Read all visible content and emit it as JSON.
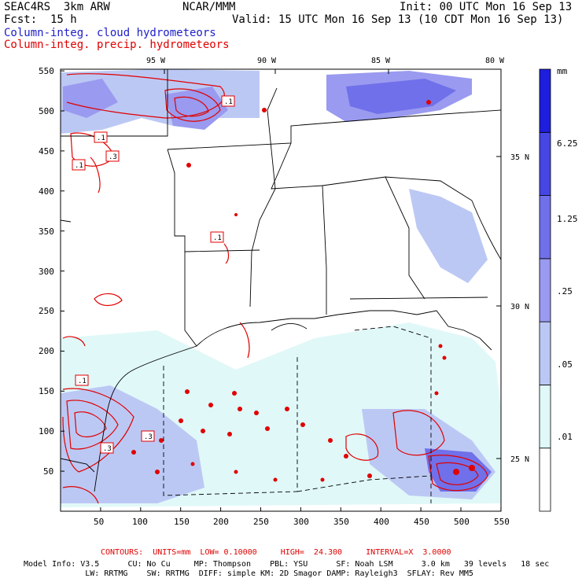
{
  "header": {
    "model": "SEAC4RS  3km ARW",
    "org": "NCAR/MMM",
    "init": "Init: 00 UTC Mon 16 Sep 13",
    "fcst_label": "Fcst:",
    "fcst_value": "15 h",
    "valid": "Valid: 15 UTC Mon 16 Sep 13 (10 CDT Mon 16 Sep 13)",
    "field1": "Column-integ. cloud hydrometeors",
    "field2": "Column-integ. precip. hydrometeors"
  },
  "map": {
    "lon_labels": [
      "95 W",
      "90 W",
      "85 W",
      "80 W"
    ],
    "lat_labels": [
      "35 N",
      "30 N",
      "25 N"
    ],
    "x_ticks": [
      "50",
      "100",
      "150",
      "200",
      "250",
      "300",
      "350",
      "400",
      "450",
      "500",
      "550"
    ],
    "y_ticks": [
      "550",
      "500",
      "450",
      "400",
      "350",
      "300",
      "250",
      "200",
      "150",
      "100",
      "50"
    ],
    "contour_labels": [
      ".1",
      ".1",
      ".3",
      ".1",
      ".1",
      ".1",
      ".3",
      ".3"
    ]
  },
  "colorbar": {
    "unit": "mm",
    "labels": [
      "6.25",
      "1.25",
      ".25",
      ".05",
      ".01"
    ],
    "colors": [
      "#ffffff",
      "#e0f8f8",
      "#bcc8f4",
      "#9a9af0",
      "#7070ea",
      "#4646e4",
      "#1e1ede"
    ]
  },
  "footer": {
    "contours_line": "CONTOURS:  UNITS=mm  LOW= 0.10000     HIGH=  24.300     INTERVAL=X  3.0000",
    "info1": "Model Info: V3.5      CU: No Cu     MP: Thompson    PBL: YSU      SF: Noah LSM      3.0 km   39 levels   18 sec",
    "info2": "             LW: RRTMG    SW: RRTMG  DIFF: simple KM: 2D Smagor DAMP: Rayleigh3  SFLAY: Rev MM5"
  }
}
